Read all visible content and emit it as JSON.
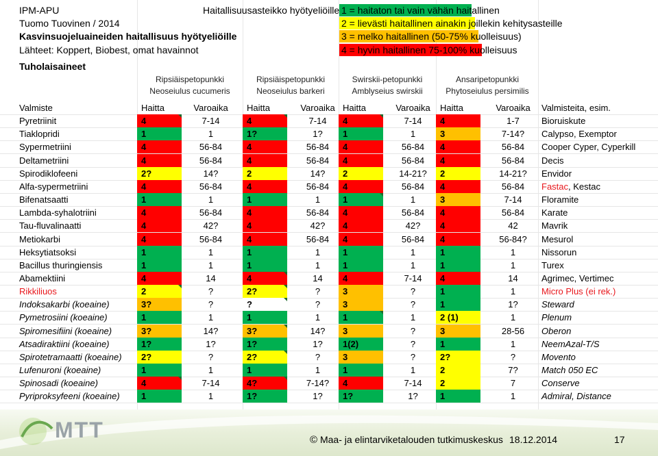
{
  "header": {
    "line1": "IPM-APU",
    "line2": "Tuomo Tuovinen / 2014",
    "line3": "Kasvinsuojeluaineiden haitallisuus hyötyeliöille",
    "line4": "Lähteet: Koppert, Biobest, omat havainnot",
    "line5": "Tuholaisaineet",
    "scale_label": "Haitallisuusasteikko hyötyeliöille:"
  },
  "legend": [
    {
      "text": "1 = haitaton tai vain vähän haitallinen",
      "color": "#00b050"
    },
    {
      "text": "2 = lievästi haitallinen ainakin joillekin kehitysasteille",
      "color": "#ffff00"
    },
    {
      "text": "3 = melko haitallinen (50-75% kuolleisuus)",
      "color": "#ffc000"
    },
    {
      "text": "4 = hyvin haitallinen 75-100% kuolleisuus",
      "color": "#ff0000"
    }
  ],
  "colors": {
    "1": "#00b050",
    "2": "#ffff00",
    "3": "#ffc000",
    "4": "#ff0000"
  },
  "species": [
    {
      "common": "Ripsiäispetopunkki",
      "latin": "Neoseiulus cucumeris"
    },
    {
      "common": "Ripsiäispetopunkki",
      "latin": "Neoseiulus barkeri"
    },
    {
      "common": "Swirskii-petopunkki",
      "latin": "Amblyseius swirskii"
    },
    {
      "common": "Ansaripetopunkki",
      "latin": "Phytoseiulus persimilis"
    }
  ],
  "columns": {
    "substance": "Valmiste",
    "harm": "Haitta",
    "duration": "Varoaika",
    "notes": "Valmisteita, esim."
  },
  "rows": [
    {
      "name": "Pyretriinit",
      "cells": [
        [
          "4",
          "7-14"
        ],
        [
          "4",
          "7-14"
        ],
        [
          "4",
          "7-14"
        ],
        [
          "4",
          "1-7"
        ]
      ],
      "note": "Bioruiskute",
      "marks": [
        1,
        2,
        3
      ]
    },
    {
      "name": "Tiaklopridi",
      "cells": [
        [
          "1",
          "1"
        ],
        [
          "1?",
          "1?"
        ],
        [
          "1",
          "1"
        ],
        [
          "3",
          "7-14?"
        ]
      ],
      "note": "Calypso, Exemptor"
    },
    {
      "name": "Sypermetriini",
      "cells": [
        [
          "4",
          "56-84"
        ],
        [
          "4",
          "56-84"
        ],
        [
          "4",
          "56-84"
        ],
        [
          "4",
          "56-84"
        ]
      ],
      "note": "Cooper Cyper, Cyperkill"
    },
    {
      "name": "Deltametriini",
      "cells": [
        [
          "4",
          "56-84"
        ],
        [
          "4",
          "56-84"
        ],
        [
          "4",
          "56-84"
        ],
        [
          "4",
          "56-84"
        ]
      ],
      "note": "Decis"
    },
    {
      "name": "Spirodiklofeeni",
      "cells": [
        [
          "2?",
          "14?"
        ],
        [
          "2",
          "14?"
        ],
        [
          "2",
          "14-21?"
        ],
        [
          "2",
          "14-21?"
        ]
      ],
      "note": "Envidor"
    },
    {
      "name": "Alfa-sypermetriini",
      "cells": [
        [
          "4",
          "56-84"
        ],
        [
          "4",
          "56-84"
        ],
        [
          "4",
          "56-84"
        ],
        [
          "4",
          "56-84"
        ]
      ],
      "note": "Fastac",
      "note2": ", Kestac",
      "noteRed": true
    },
    {
      "name": "Bifenatsaatti",
      "cells": [
        [
          "1",
          "1"
        ],
        [
          "1",
          "1"
        ],
        [
          "1",
          "1"
        ],
        [
          "3",
          "7-14"
        ]
      ],
      "note": "Floramite",
      "marks": [
        3
      ]
    },
    {
      "name": "Lambda-syhalotriini",
      "cells": [
        [
          "4",
          "56-84"
        ],
        [
          "4",
          "56-84"
        ],
        [
          "4",
          "56-84"
        ],
        [
          "4",
          "56-84"
        ]
      ],
      "note": "Karate"
    },
    {
      "name": "Tau-fluvalinaatti",
      "cells": [
        [
          "4",
          "42?"
        ],
        [
          "4",
          "42?"
        ],
        [
          "4",
          "42?"
        ],
        [
          "4",
          "42"
        ]
      ],
      "note": "Mavrik"
    },
    {
      "name": "Metiokarbi",
      "cells": [
        [
          "4",
          "56-84"
        ],
        [
          "4",
          "56-84"
        ],
        [
          "4",
          "56-84"
        ],
        [
          "4",
          "56-84?"
        ]
      ],
      "note": "Mesurol"
    },
    {
      "name": "Heksytiatsoksi",
      "cells": [
        [
          "1",
          "1"
        ],
        [
          "1",
          "1"
        ],
        [
          "1",
          "1"
        ],
        [
          "1",
          "1"
        ]
      ],
      "note": "Nissorun"
    },
    {
      "name": "Bacillus thuringiensis",
      "cells": [
        [
          "1",
          "1"
        ],
        [
          "1",
          "1"
        ],
        [
          "1",
          "1"
        ],
        [
          "1",
          "1"
        ]
      ],
      "note": "Turex"
    },
    {
      "name": "Abamektiini",
      "cells": [
        [
          "4",
          "14"
        ],
        [
          "4",
          "14"
        ],
        [
          "4",
          "7-14"
        ],
        [
          "4",
          "14"
        ]
      ],
      "note": "Agrimec, Vertimec",
      "marks": [
        2
      ]
    },
    {
      "name": "Rikkiliuos",
      "nameRed": true,
      "cells": [
        [
          "2",
          "?"
        ],
        [
          "2?",
          "?"
        ],
        [
          "3",
          "?"
        ],
        [
          "1",
          "1"
        ]
      ],
      "note": "Micro Plus (ei rek.)",
      "noteRed": true,
      "marks": [
        1,
        2
      ]
    },
    {
      "name": "Indoksakarbi (koeaine)",
      "italic": true,
      "cells": [
        [
          "3?",
          "?"
        ],
        [
          "?",
          "?"
        ],
        [
          "3",
          "?"
        ],
        [
          "1",
          "1?"
        ]
      ],
      "note": "Steward",
      "marks": [
        2
      ]
    },
    {
      "name": "Pymetrosiini (koeaine)",
      "italic": true,
      "cells": [
        [
          "1",
          "1"
        ],
        [
          "1",
          "1"
        ],
        [
          "1",
          "1"
        ],
        [
          "2 (1)",
          "1"
        ]
      ],
      "note": "Plenum",
      "marks": [
        3
      ]
    },
    {
      "name": "Spiromesifiini (koeaine)",
      "italic": true,
      "cells": [
        [
          "3?",
          "14?"
        ],
        [
          "3?",
          "14?"
        ],
        [
          "3",
          "?"
        ],
        [
          "3",
          "28-56"
        ]
      ],
      "note": "Oberon",
      "marks": [
        2
      ]
    },
    {
      "name": "Atsadiraktiini (koeaine)",
      "italic": true,
      "cells": [
        [
          "1?",
          "1?"
        ],
        [
          "1?",
          "1?"
        ],
        [
          "1(2)",
          "?"
        ],
        [
          "1",
          "1"
        ]
      ],
      "note": "NeemAzal-T/S"
    },
    {
      "name": "Spirotetramaatti (koeaine)",
      "italic": true,
      "cells": [
        [
          "2?",
          "?"
        ],
        [
          "2?",
          "?"
        ],
        [
          "3",
          "?"
        ],
        [
          "2?",
          "?"
        ]
      ],
      "note": "Movento",
      "marks": [
        2
      ]
    },
    {
      "name": "Lufenuroni (koeaine)",
      "italic": true,
      "cells": [
        [
          "1",
          "1"
        ],
        [
          "1",
          "1"
        ],
        [
          "1",
          "1"
        ],
        [
          "2",
          "7?"
        ]
      ],
      "note": "Match 050 EC"
    },
    {
      "name": "Spinosadi (koeaine)",
      "italic": true,
      "cells": [
        [
          "4",
          "7-14"
        ],
        [
          "4?",
          "7-14?"
        ],
        [
          "4",
          "7-14"
        ],
        [
          "2",
          "7"
        ]
      ],
      "note": "Conserve",
      "marks": [
        1,
        2
      ]
    },
    {
      "name": "Pyriproksyfeeni (koeaine)",
      "italic": true,
      "cells": [
        [
          "1",
          "1"
        ],
        [
          "1?",
          "1?"
        ],
        [
          "1?",
          "1?"
        ],
        [
          "1",
          "1"
        ]
      ],
      "note": "Admiral, Distance"
    }
  ],
  "footer": {
    "logo": "MTT",
    "copyright_symbol": "©",
    "org": "Maa- ja elintarviketalouden tutkimuskeskus",
    "date": "18.12.2014",
    "page": "17"
  }
}
